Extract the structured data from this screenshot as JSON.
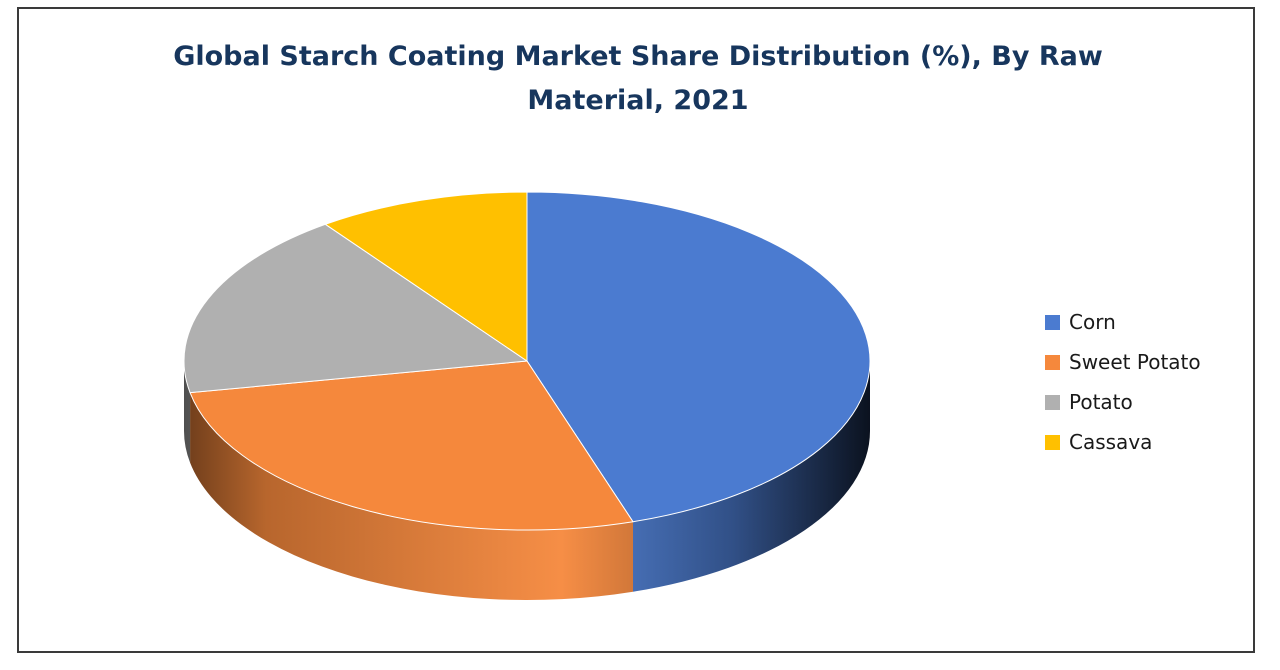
{
  "chart_data": {
    "type": "pie",
    "title": "Global Starch Coating Market Share Distribution (%), By Raw Material, 2021",
    "title_lines": [
      "Global Starch Coating Market Share Distribution (%), By Raw",
      "Material, 2021"
    ],
    "style": "3d",
    "categories": [
      "Corn",
      "Sweet Potato",
      "Potato",
      "Cassava"
    ],
    "values": [
      45,
      27,
      18,
      10
    ],
    "colors": [
      "#4b7bd0",
      "#f5883c",
      "#b0b0b0",
      "#ffc000"
    ],
    "legend_position": "right"
  }
}
